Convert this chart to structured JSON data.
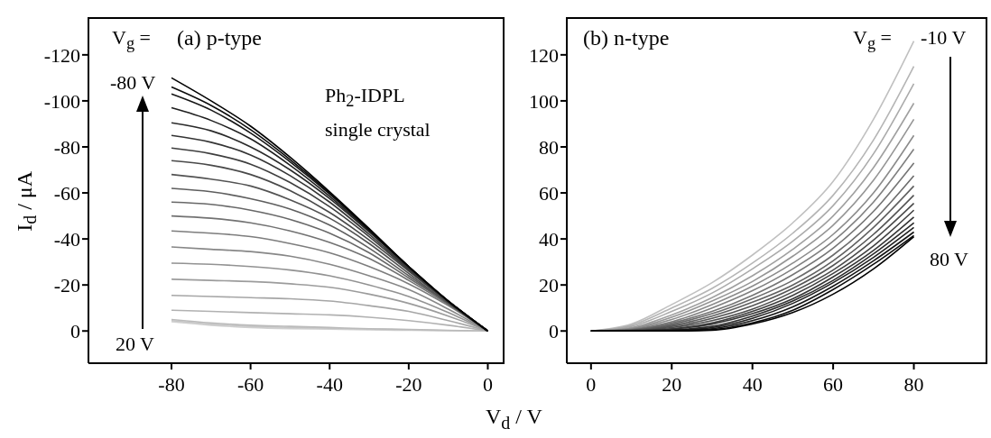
{
  "chart_data": [
    {
      "type": "line",
      "title": "(a)  p-type",
      "xlabel": "V$_{d}$ / V",
      "ylabel": "I$_{d}$ / μA",
      "x": [
        -80,
        -70,
        -60,
        -50,
        -40,
        -30,
        -20,
        -10,
        0
      ],
      "xlim": [
        -101,
        4
      ],
      "xticks": [
        -80,
        -60,
        -40,
        -20,
        0
      ],
      "ylim": [
        14,
        -136
      ],
      "yticks": [
        -120,
        -100,
        -80,
        -60,
        -40,
        -20,
        0
      ],
      "grid": false,
      "legend": false,
      "annotations": [
        "V$_{g}$ =",
        "-80 V",
        "20 V",
        "Ph$_{2}$-IDPL",
        "single crystal"
      ],
      "series": [
        {
          "color": "#d0d0d0",
          "values": [
            -4,
            -2.5,
            -1.5,
            -1,
            -0.8,
            -0.5,
            -0.3,
            -0.1,
            0
          ]
        },
        {
          "color": "#c6c6c6",
          "values": [
            -4.5,
            -3,
            -2,
            -1.5,
            -1.2,
            -0.8,
            -0.5,
            -0.2,
            0
          ]
        },
        {
          "color": "#bbbbbb",
          "values": [
            -5,
            -3.5,
            -2.5,
            -2,
            -1.5,
            -1,
            -0.7,
            -0.3,
            0
          ]
        },
        {
          "color": "#b1b1b1",
          "values": [
            -9,
            -8.5,
            -8,
            -7.5,
            -7,
            -6,
            -4.5,
            -2.5,
            0
          ]
        },
        {
          "color": "#a6a6a6",
          "values": [
            -15.5,
            -15,
            -14.5,
            -14,
            -13,
            -11,
            -8.5,
            -4.5,
            0
          ]
        },
        {
          "color": "#9c9c9c",
          "values": [
            -22.5,
            -22,
            -21.5,
            -20.5,
            -19,
            -16,
            -12,
            -6.5,
            0
          ]
        },
        {
          "color": "#929292",
          "values": [
            -29.5,
            -29,
            -28,
            -26.5,
            -24,
            -20,
            -15,
            -8,
            0
          ]
        },
        {
          "color": "#878787",
          "values": [
            -36.5,
            -35.5,
            -34.5,
            -32.5,
            -29,
            -24,
            -18,
            -9.5,
            0
          ]
        },
        {
          "color": "#7d7d7d",
          "values": [
            -43.5,
            -42.5,
            -41,
            -38,
            -34,
            -28,
            -20.5,
            -11,
            0
          ]
        },
        {
          "color": "#727272",
          "values": [
            -50,
            -49,
            -47,
            -43.5,
            -38.5,
            -31.5,
            -22,
            -11.5,
            0
          ]
        },
        {
          "color": "#686868",
          "values": [
            -56,
            -55,
            -52.5,
            -48.5,
            -42.5,
            -34,
            -23,
            -12,
            0
          ]
        },
        {
          "color": "#5e5e5e",
          "values": [
            -62,
            -60.5,
            -57.5,
            -53,
            -46,
            -36,
            -24,
            -12,
            0
          ]
        },
        {
          "color": "#535353",
          "values": [
            -68,
            -66,
            -63,
            -57,
            -49,
            -38,
            -25,
            -12,
            0
          ]
        },
        {
          "color": "#494949",
          "values": [
            -74,
            -72,
            -68,
            -61,
            -51.5,
            -39.5,
            -26,
            -12.5,
            0
          ]
        },
        {
          "color": "#3e3e3e",
          "values": [
            -79.5,
            -77,
            -72.5,
            -64.5,
            -54,
            -41,
            -26.5,
            -12.5,
            0
          ]
        },
        {
          "color": "#343434",
          "values": [
            -85,
            -82,
            -76.5,
            -67.5,
            -56,
            -42,
            -27,
            -13,
            0
          ]
        },
        {
          "color": "#2a2a2a",
          "values": [
            -90.5,
            -87,
            -80,
            -70,
            -57.5,
            -43,
            -27.5,
            -13,
            0
          ]
        },
        {
          "color": "#1f1f1f",
          "values": [
            -97,
            -91.5,
            -83.5,
            -72,
            -58.5,
            -43.5,
            -28,
            -13,
            0
          ]
        },
        {
          "color": "#151515",
          "values": [
            -103,
            -96,
            -86,
            -73.5,
            -59.5,
            -44,
            -28,
            -13,
            0
          ]
        },
        {
          "color": "#0a0a0a",
          "values": [
            -106,
            -98,
            -87.5,
            -74.5,
            -60,
            -44,
            -28,
            -13,
            0
          ]
        },
        {
          "color": "#000000",
          "values": [
            -110,
            -100,
            -89,
            -75.5,
            -60.5,
            -44.5,
            -28,
            -13,
            0
          ]
        }
      ]
    },
    {
      "type": "line",
      "title": "(b)   n-type",
      "x": [
        0,
        10,
        20,
        30,
        40,
        50,
        60,
        70,
        80
      ],
      "xlim": [
        -6,
        98
      ],
      "xticks": [
        0,
        20,
        40,
        60,
        80
      ],
      "ylim": [
        -14,
        136
      ],
      "yticks": [
        0,
        20,
        40,
        60,
        80,
        100,
        120
      ],
      "grid": false,
      "legend": false,
      "annotations": [
        "V$_{g}$ =",
        "-10 V",
        "80 V"
      ],
      "series": [
        {
          "color": "#c0c0c0",
          "values": [
            0,
            3,
            11.5,
            21,
            33,
            47,
            65,
            92,
            126
          ]
        },
        {
          "color": "#b5b5b5",
          "values": [
            0,
            2.5,
            10,
            18.5,
            29.5,
            42.5,
            59,
            83,
            115
          ]
        },
        {
          "color": "#ababab",
          "values": [
            0,
            2,
            8.5,
            16.5,
            27,
            39,
            54.5,
            77,
            107.5
          ]
        },
        {
          "color": "#a0a0a0",
          "values": [
            0,
            1.5,
            7,
            14.5,
            24,
            35.5,
            50,
            71,
            99
          ]
        },
        {
          "color": "#959595",
          "values": [
            0,
            1.2,
            6,
            13,
            21.5,
            32.5,
            46,
            65.5,
            92
          ]
        },
        {
          "color": "#8b8b8b",
          "values": [
            0,
            1,
            5,
            11.5,
            19.5,
            29.5,
            42,
            60,
            85
          ]
        },
        {
          "color": "#808080",
          "values": [
            0,
            0.8,
            4,
            10,
            17.5,
            27,
            39,
            56,
            79
          ]
        },
        {
          "color": "#757575",
          "values": [
            0,
            0.6,
            3.5,
            8.5,
            15.5,
            24.5,
            36,
            52,
            73
          ]
        },
        {
          "color": "#6b6b6b",
          "values": [
            0,
            0.5,
            3,
            7.5,
            14,
            22,
            33,
            48,
            67.5
          ]
        },
        {
          "color": "#606060",
          "values": [
            0,
            0.4,
            2.5,
            6.5,
            12.5,
            20,
            30.5,
            45,
            63
          ]
        },
        {
          "color": "#555555",
          "values": [
            0,
            0.3,
            2,
            5.5,
            11,
            18.5,
            28.5,
            42,
            59
          ]
        },
        {
          "color": "#4b4b4b",
          "values": [
            0,
            0.2,
            1.5,
            4.5,
            9.5,
            17,
            26.5,
            39.5,
            55.5
          ]
        },
        {
          "color": "#404040",
          "values": [
            0,
            0.2,
            1,
            3.5,
            8.5,
            15.5,
            25,
            37,
            52.5
          ]
        },
        {
          "color": "#353535",
          "values": [
            0,
            0.1,
            0.8,
            3,
            7.5,
            14,
            23.5,
            35,
            49.5
          ]
        },
        {
          "color": "#2b2b2b",
          "values": [
            0,
            0.1,
            0.5,
            2,
            6.5,
            13,
            22,
            33.5,
            47
          ]
        },
        {
          "color": "#202020",
          "values": [
            0,
            0,
            0.3,
            1.5,
            5.5,
            12,
            21,
            32,
            45
          ]
        },
        {
          "color": "#151515",
          "values": [
            0,
            0,
            0.2,
            1,
            4.5,
            10.5,
            19.5,
            30.5,
            43
          ]
        },
        {
          "color": "#0b0b0b",
          "values": [
            0,
            0,
            0.1,
            0.6,
            3.5,
            9,
            18,
            29,
            41.5
          ]
        },
        {
          "color": "#000000",
          "values": [
            0,
            0,
            0,
            0.3,
            3,
            8,
            16,
            27,
            41
          ]
        }
      ]
    }
  ]
}
